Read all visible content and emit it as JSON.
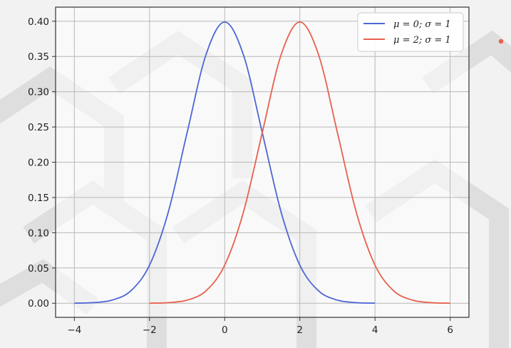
{
  "chart_data": {
    "type": "line",
    "title": "",
    "xlabel": "",
    "ylabel": "",
    "xlim": [
      -4.5,
      6.5
    ],
    "ylim": [
      -0.02,
      0.42
    ],
    "x_ticks": [
      -4,
      -2,
      0,
      2,
      4,
      6
    ],
    "x_tick_labels": [
      "−4",
      "−2",
      "0",
      "2",
      "4",
      "6"
    ],
    "y_ticks": [
      0.0,
      0.05,
      0.1,
      0.15,
      0.2,
      0.25,
      0.3,
      0.35,
      0.4
    ],
    "y_tick_labels": [
      "0.00",
      "0.05",
      "0.10",
      "0.15",
      "0.20",
      "0.25",
      "0.30",
      "0.35",
      "0.40"
    ],
    "grid": true,
    "legend_placement": "top-right",
    "series": [
      {
        "name": "μ = 0; σ = 1",
        "color": "#4e66d6",
        "x": [
          -4.0,
          -3.5,
          -3.0,
          -2.5,
          -2.0,
          -1.5,
          -1.0,
          -0.5,
          0.0,
          0.5,
          1.0,
          1.5,
          2.0,
          2.5,
          3.0,
          3.5,
          4.0
        ],
        "y": [
          0.0001,
          0.0009,
          0.0044,
          0.0175,
          0.054,
          0.1295,
          0.242,
          0.3521,
          0.3989,
          0.3521,
          0.242,
          0.1295,
          0.054,
          0.0175,
          0.0044,
          0.0009,
          0.0001
        ]
      },
      {
        "name": "μ = 2; σ = 1",
        "color": "#e8604c",
        "x": [
          -2.0,
          -1.5,
          -1.0,
          -0.5,
          0.0,
          0.5,
          1.0,
          1.5,
          2.0,
          2.5,
          3.0,
          3.5,
          4.0,
          4.5,
          5.0,
          5.5,
          6.0
        ],
        "y": [
          0.0001,
          0.0009,
          0.0044,
          0.0175,
          0.054,
          0.1295,
          0.242,
          0.3521,
          0.3989,
          0.3521,
          0.242,
          0.1295,
          0.054,
          0.0175,
          0.0044,
          0.0009,
          0.0001
        ]
      }
    ]
  },
  "colors": {
    "grid": "#b8b8b8",
    "axes": "#333333",
    "marker_dot": "#e8604c"
  }
}
